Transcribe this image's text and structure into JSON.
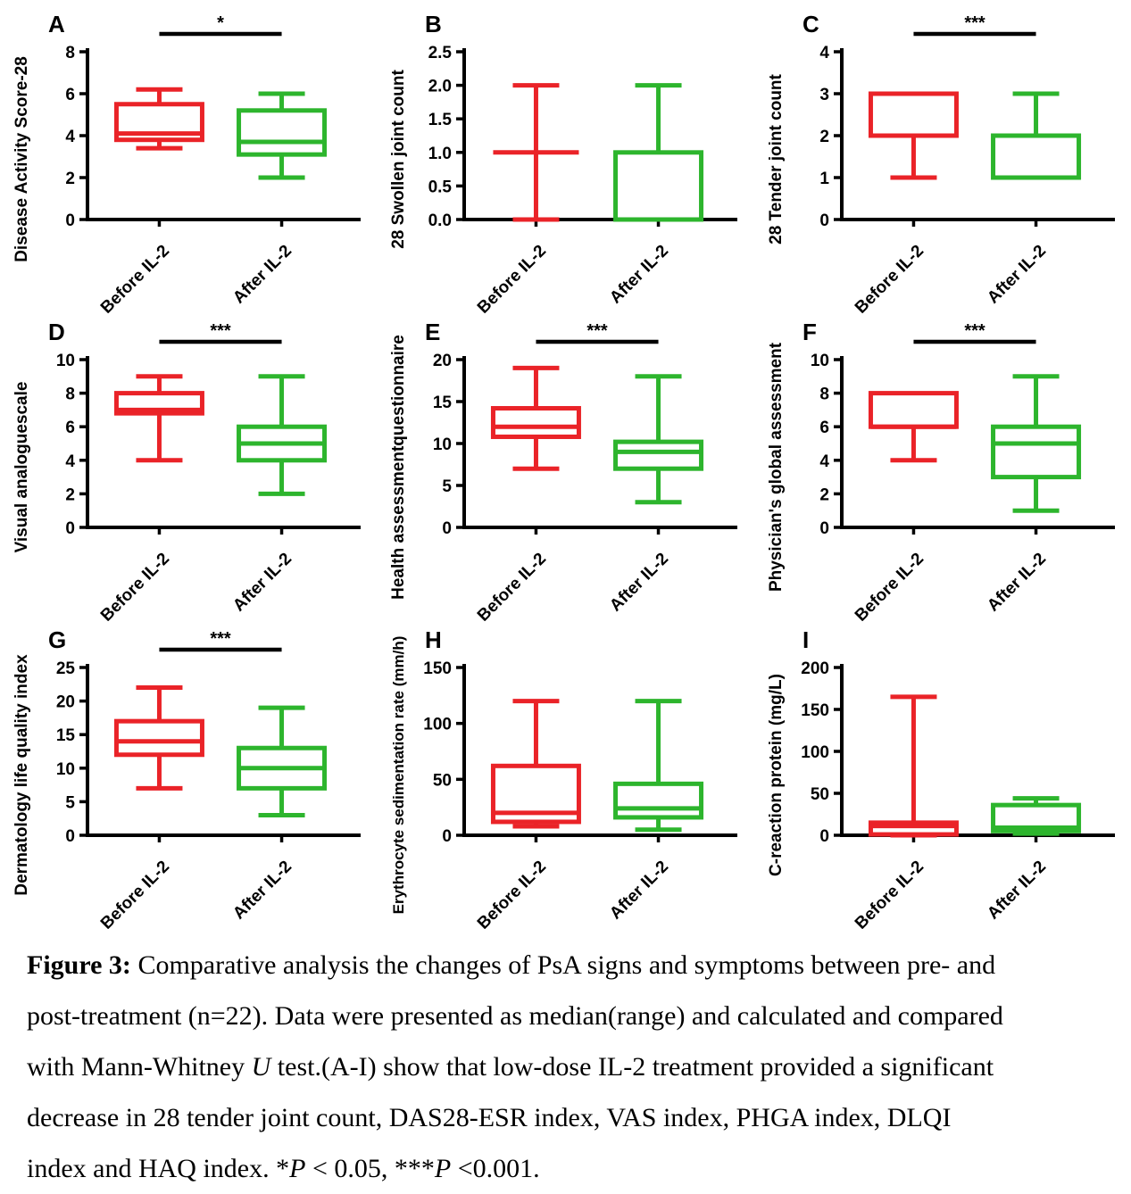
{
  "page": {
    "background": "#ffffff"
  },
  "colors": {
    "before": "#ea2328",
    "after": "#2db52d",
    "axis": "#000000",
    "significance": "#000000"
  },
  "categories": [
    "Before IL-2",
    "After IL-2"
  ],
  "chart_data": [
    {
      "type": "box",
      "panel": "A",
      "ylabel": "Disease Activity Score-28",
      "ylim": [
        0,
        8
      ],
      "yticks": [
        0,
        2,
        4,
        6,
        8
      ],
      "ytick_labels": [
        "0",
        "2",
        "4",
        "6",
        "8"
      ],
      "significance": "*",
      "categories": [
        "Before IL-2",
        "After IL-2"
      ],
      "series": [
        {
          "name": "Before IL-2",
          "color_key": "before",
          "min": 3.4,
          "q1": 3.8,
          "median": 4.1,
          "q3": 5.5,
          "max": 6.2
        },
        {
          "name": "After IL-2",
          "color_key": "after",
          "min": 2,
          "q1": 3.1,
          "median": 3.7,
          "q3": 5.2,
          "max": 6
        }
      ]
    },
    {
      "type": "box",
      "panel": "B",
      "ylabel": "28 Swollen joint count",
      "ylim": [
        0,
        2.5
      ],
      "yticks": [
        0,
        0.5,
        1,
        1.5,
        2,
        2.5
      ],
      "ytick_labels": [
        "0.0",
        "0.5",
        "1.0",
        "1.5",
        "2.0",
        "2.5"
      ],
      "significance": "",
      "categories": [
        "Before IL-2",
        "After IL-2"
      ],
      "series": [
        {
          "name": "Before IL-2",
          "color_key": "before",
          "min": 0,
          "q1": 1,
          "median": 1,
          "q3": 1,
          "max": 2
        },
        {
          "name": "After IL-2",
          "color_key": "after",
          "min": 0,
          "q1": 0,
          "median": 0,
          "q3": 1,
          "max": 2
        }
      ]
    },
    {
      "type": "box",
      "panel": "C",
      "ylabel": "28 Tender joint count",
      "ylim": [
        0,
        4
      ],
      "yticks": [
        0,
        1,
        2,
        3,
        4
      ],
      "ytick_labels": [
        "0",
        "1",
        "2",
        "3",
        "4"
      ],
      "significance": "***",
      "categories": [
        "Before IL-2",
        "After IL-2"
      ],
      "series": [
        {
          "name": "Before IL-2",
          "color_key": "before",
          "min": 1,
          "q1": 2,
          "median": 2,
          "q3": 3,
          "max": 3
        },
        {
          "name": "After IL-2",
          "color_key": "after",
          "min": 1,
          "q1": 1,
          "median": 2,
          "q3": 2,
          "max": 3
        }
      ]
    },
    {
      "type": "box",
      "panel": "D",
      "ylabel": "Visual analoguescale",
      "ylim": [
        0,
        10
      ],
      "yticks": [
        0,
        2,
        4,
        6,
        8,
        10
      ],
      "ytick_labels": [
        "0",
        "2",
        "4",
        "6",
        "8",
        "10"
      ],
      "significance": "***",
      "categories": [
        "Before IL-2",
        "After IL-2"
      ],
      "series": [
        {
          "name": "Before IL-2",
          "color_key": "before",
          "min": 4,
          "q1": 6.8,
          "median": 7,
          "q3": 8,
          "max": 9
        },
        {
          "name": "After IL-2",
          "color_key": "after",
          "min": 2,
          "q1": 4,
          "median": 5,
          "q3": 6,
          "max": 9
        }
      ]
    },
    {
      "type": "box",
      "panel": "E",
      "ylabel": "Health assessmentquestionnaire",
      "ylim": [
        0,
        20
      ],
      "yticks": [
        0,
        5,
        10,
        15,
        20
      ],
      "ytick_labels": [
        "0",
        "5",
        "10",
        "15",
        "20"
      ],
      "significance": "***",
      "categories": [
        "Before IL-2",
        "After IL-2"
      ],
      "series": [
        {
          "name": "Before IL-2",
          "color_key": "before",
          "min": 7,
          "q1": 10.8,
          "median": 12,
          "q3": 14.2,
          "max": 19
        },
        {
          "name": "After IL-2",
          "color_key": "after",
          "min": 3,
          "q1": 7,
          "median": 9,
          "q3": 10.2,
          "max": 18
        }
      ]
    },
    {
      "type": "box",
      "panel": "F",
      "ylabel": "Physician's global assessment",
      "ylim": [
        0,
        10
      ],
      "yticks": [
        0,
        2,
        4,
        6,
        8,
        10
      ],
      "ytick_labels": [
        "0",
        "2",
        "4",
        "6",
        "8",
        "10"
      ],
      "significance": "***",
      "categories": [
        "Before IL-2",
        "After IL-2"
      ],
      "series": [
        {
          "name": "Before IL-2",
          "color_key": "before",
          "min": 4,
          "q1": 6,
          "median": 6,
          "q3": 8,
          "max": 8
        },
        {
          "name": "After IL-2",
          "color_key": "after",
          "min": 1,
          "q1": 3,
          "median": 5,
          "q3": 6,
          "max": 9
        }
      ]
    },
    {
      "type": "box",
      "panel": "G",
      "ylabel": "Dermatology life quality index",
      "ylim": [
        0,
        25
      ],
      "yticks": [
        0,
        5,
        10,
        15,
        20,
        25
      ],
      "ytick_labels": [
        "0",
        "5",
        "10",
        "15",
        "20",
        "25"
      ],
      "significance": "***",
      "categories": [
        "Before IL-2",
        "After IL-2"
      ],
      "series": [
        {
          "name": "Before IL-2",
          "color_key": "before",
          "min": 7,
          "q1": 12,
          "median": 14,
          "q3": 17,
          "max": 22
        },
        {
          "name": "After IL-2",
          "color_key": "after",
          "min": 3,
          "q1": 7,
          "median": 10,
          "q3": 13,
          "max": 19
        }
      ]
    },
    {
      "type": "box",
      "panel": "H",
      "ylabel": "Erythrocyte sedimentation rate (mm/h)",
      "ylim": [
        0,
        150
      ],
      "yticks": [
        0,
        50,
        100,
        150
      ],
      "ytick_labels": [
        "0",
        "50",
        "100",
        "150"
      ],
      "significance": "",
      "categories": [
        "Before IL-2",
        "After IL-2"
      ],
      "series": [
        {
          "name": "Before IL-2",
          "color_key": "before",
          "min": 8,
          "q1": 12,
          "median": 20,
          "q3": 62,
          "max": 120
        },
        {
          "name": "After IL-2",
          "color_key": "after",
          "min": 5,
          "q1": 16,
          "median": 24,
          "q3": 46,
          "max": 120
        }
      ]
    },
    {
      "type": "box",
      "panel": "I",
      "ylabel": "C-reaction protein (mg/L)",
      "ylim": [
        0,
        200
      ],
      "yticks": [
        0,
        50,
        100,
        150,
        200
      ],
      "ytick_labels": [
        "0",
        "50",
        "100",
        "150",
        "200"
      ],
      "significance": "",
      "categories": [
        "Before IL-2",
        "After IL-2"
      ],
      "series": [
        {
          "name": "Before IL-2",
          "color_key": "before",
          "min": 0,
          "q1": 1,
          "median": 11,
          "q3": 15,
          "max": 165
        },
        {
          "name": "After IL-2",
          "color_key": "after",
          "min": 2,
          "q1": 5,
          "median": 9,
          "q3": 36,
          "max": 44
        }
      ]
    }
  ],
  "caption": {
    "lines": [
      [
        {
          "t": "Figure 3:",
          "b": true
        },
        {
          "t": " Comparative analysis the changes of PsA signs and symptoms between pre- and"
        }
      ],
      [
        {
          "t": "post-treatment (n=22). Data were presented as median(range) and calculated and compared"
        }
      ],
      [
        {
          "t": "with Mann-Whitney "
        },
        {
          "t": "U",
          "i": true
        },
        {
          "t": " test.(A-I) show that low-dose IL-2 treatment provided a significant"
        }
      ],
      [
        {
          "t": "decrease in 28 tender joint count, DAS28-ESR index, VAS index, PHGA index, DLQI"
        }
      ],
      [
        {
          "t": "index and HAQ index. *"
        },
        {
          "t": "P",
          "i": true
        },
        {
          "t": " < 0.05, ***"
        },
        {
          "t": "P",
          "i": true
        },
        {
          "t": " <0.001."
        }
      ]
    ]
  }
}
